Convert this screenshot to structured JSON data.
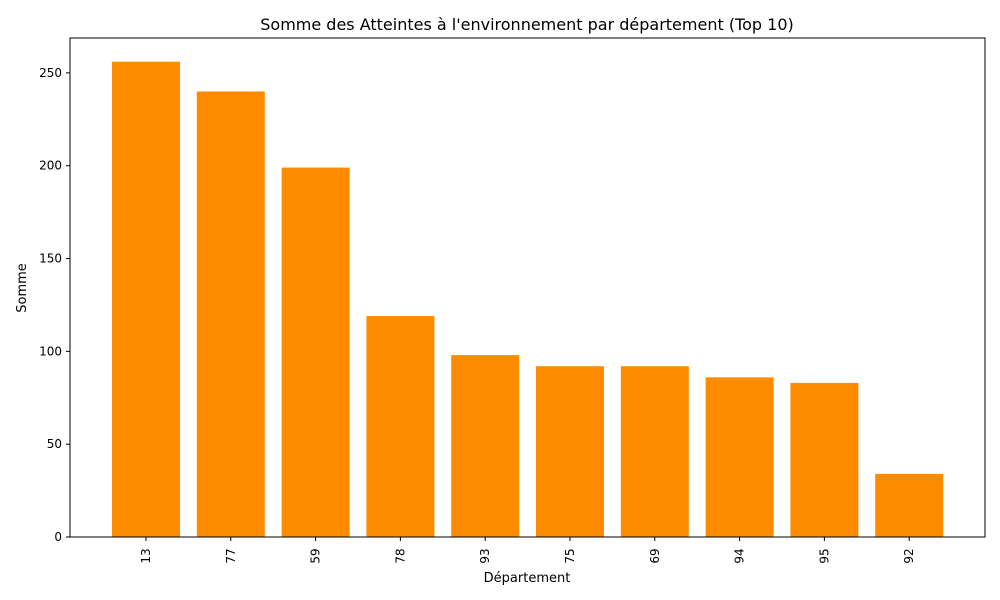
{
  "chart_data": {
    "type": "bar",
    "title": "Somme des Atteintes à l'environnement par département (Top 10)",
    "xlabel": "Département",
    "ylabel": "Somme",
    "categories": [
      "13",
      "77",
      "59",
      "78",
      "93",
      "75",
      "69",
      "94",
      "95",
      "92"
    ],
    "values": [
      256,
      240,
      199,
      119,
      98,
      92,
      92,
      86,
      83,
      34
    ],
    "ylim": [
      0,
      268.8
    ],
    "yticks": [
      0,
      50,
      100,
      150,
      200,
      250
    ],
    "bar_color": "#ff8c00",
    "grid": false
  }
}
